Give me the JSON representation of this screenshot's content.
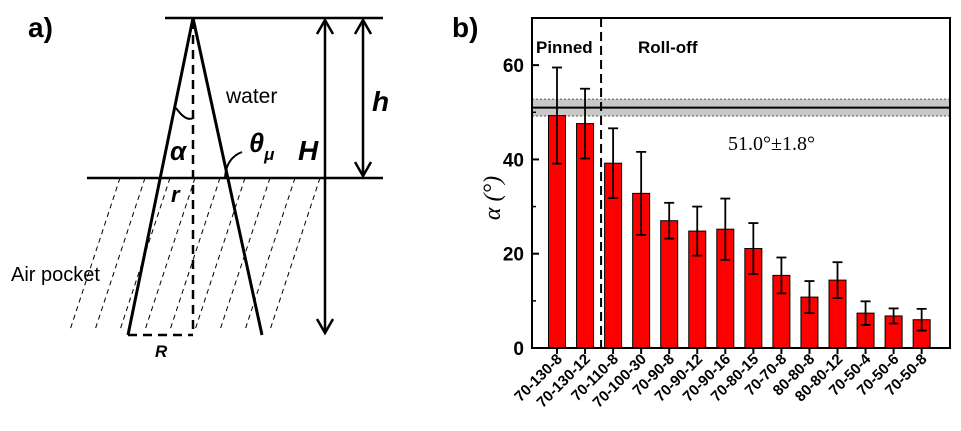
{
  "panel_a": {
    "label": "a)",
    "water": "water",
    "air_pocket": "Air pocket",
    "alpha": "α",
    "theta": "θ",
    "theta_sub": "μ",
    "H": "H",
    "h": "h",
    "r": "r",
    "R": "R"
  },
  "panel_b": {
    "label": "b)"
  },
  "chart_data": {
    "type": "bar",
    "ylabel": "α (°)",
    "ylim": [
      0,
      70
    ],
    "yticks": [
      0,
      20,
      40,
      60
    ],
    "grid": false,
    "categories": [
      "70-130-8",
      "70-130-12",
      "70-110-8",
      "70-100-30",
      "70-90-8",
      "70-90-12",
      "70-90-16",
      "70-80-15",
      "70-70-8",
      "80-80-8",
      "80-80-12",
      "70-50-4",
      "70-50-6",
      "70-50-8"
    ],
    "values": [
      49.3,
      47.6,
      39.2,
      32.8,
      27.0,
      24.8,
      25.2,
      21.1,
      15.4,
      10.8,
      14.4,
      7.4,
      6.8,
      6.0
    ],
    "errors": [
      10.2,
      7.4,
      7.4,
      8.8,
      3.8,
      5.2,
      6.5,
      5.4,
      3.8,
      3.4,
      3.8,
      2.5,
      1.6,
      2.3
    ],
    "bar_color": "#ff0000",
    "regions": {
      "pinned_label": "Pinned",
      "rolloff_label": "Roll-off",
      "divider_after_index": 1
    },
    "reference_band": {
      "center": 51.0,
      "halfwidth": 1.8,
      "label": "51.0°±1.8°",
      "fill": "#c8c8c8"
    }
  }
}
